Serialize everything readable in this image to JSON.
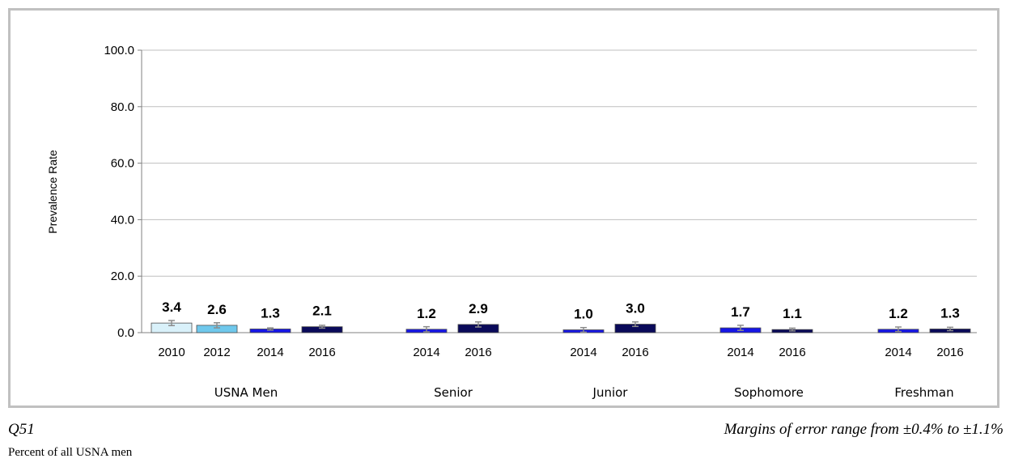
{
  "footer": {
    "question": "Q51",
    "margin_note": "Margins of error range from ±0.4% to ±1.1%",
    "population": "Percent of all USNA men"
  },
  "colors": {
    "2010": "#d9f1fa",
    "2012": "#6fc8ec",
    "2014": "#1616e6",
    "2016": "#0a0a5a",
    "grid": "#bfbfbf",
    "errorbar": "#8c8c8c"
  },
  "chart_data": {
    "type": "bar",
    "title": "",
    "xlabel": "",
    "ylabel": "Prevalence Rate",
    "ylim": [
      0,
      100
    ],
    "yticks": [
      "0.0",
      "20.0",
      "40.0",
      "60.0",
      "80.0",
      "100.0"
    ],
    "grid": true,
    "groups": [
      {
        "label": "USNA Men",
        "bars": [
          {
            "year": "2010",
            "value": 3.4,
            "label": "3.4"
          },
          {
            "year": "2012",
            "value": 2.6,
            "label": "2.6"
          },
          {
            "year": "2014",
            "value": 1.3,
            "label": "1.3"
          },
          {
            "year": "2016",
            "value": 2.1,
            "label": "2.1"
          }
        ]
      },
      {
        "label": "Senior",
        "bars": [
          {
            "year": "2014",
            "value": 1.2,
            "label": "1.2"
          },
          {
            "year": "2016",
            "value": 2.9,
            "label": "2.9"
          }
        ]
      },
      {
        "label": "Junior",
        "bars": [
          {
            "year": "2014",
            "value": 1.0,
            "label": "1.0"
          },
          {
            "year": "2016",
            "value": 3.0,
            "label": "3.0"
          }
        ]
      },
      {
        "label": "Sophomore",
        "bars": [
          {
            "year": "2014",
            "value": 1.7,
            "label": "1.7"
          },
          {
            "year": "2016",
            "value": 1.1,
            "label": "1.1"
          }
        ]
      },
      {
        "label": "Freshman",
        "bars": [
          {
            "year": "2014",
            "value": 1.2,
            "label": "1.2"
          },
          {
            "year": "2016",
            "value": 1.3,
            "label": "1.3"
          }
        ]
      }
    ]
  }
}
